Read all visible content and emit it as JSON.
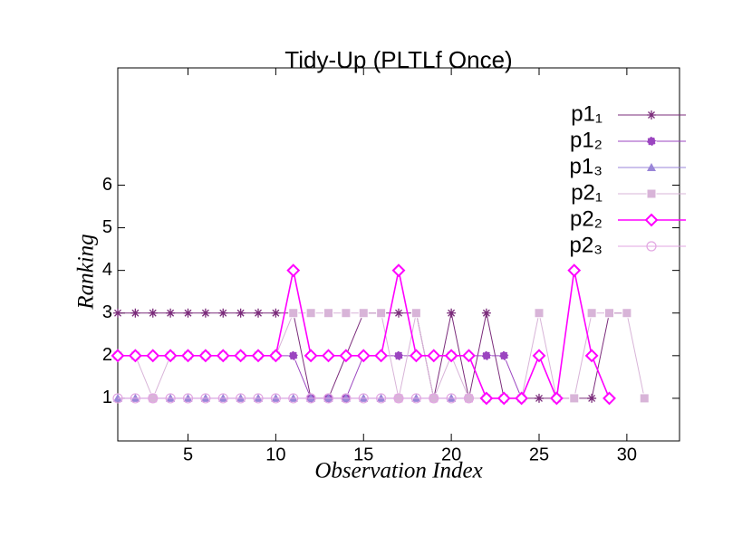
{
  "chart_data": {
    "type": "line",
    "title": "Tidy-Up (PLTLf Once)",
    "x_label": "Observation Index",
    "y_label": "Ranking",
    "x": [
      1,
      2,
      3,
      4,
      5,
      6,
      7,
      8,
      9,
      10,
      11,
      12,
      13,
      14,
      15,
      16,
      17,
      18,
      19,
      20,
      21,
      22,
      23,
      24,
      25,
      26,
      27,
      28,
      29,
      30,
      31
    ],
    "series": [
      {
        "name": "p1₁",
        "color": "#7b2c7b",
        "marker": "star",
        "values": [
          3,
          3,
          3,
          3,
          3,
          3,
          3,
          3,
          3,
          3,
          3,
          1,
          1,
          2,
          3,
          3,
          3,
          3,
          1,
          3,
          1,
          3,
          1,
          1,
          1,
          1,
          1,
          1,
          3,
          3,
          null
        ]
      },
      {
        "name": "p1₂",
        "color": "#9b45c0",
        "marker": "half-circle",
        "values": [
          2,
          2,
          2,
          2,
          2,
          2,
          2,
          2,
          2,
          2,
          2,
          1,
          1,
          1,
          2,
          2,
          2,
          2,
          2,
          2,
          2,
          2,
          2,
          1,
          2,
          1,
          null,
          null,
          null,
          null,
          null
        ]
      },
      {
        "name": "p1₃",
        "color": "#9a86d8",
        "marker": "triangle",
        "values": [
          1,
          1,
          1,
          1,
          1,
          1,
          1,
          1,
          1,
          1,
          1,
          1,
          1,
          1,
          1,
          1,
          1,
          1,
          1,
          1,
          1,
          null,
          null,
          null,
          null,
          null,
          null,
          null,
          null,
          null,
          null
        ]
      },
      {
        "name": "p2₁",
        "color": "#d8b4d8",
        "marker": "square",
        "values": [
          2,
          2,
          1,
          2,
          2,
          2,
          2,
          2,
          2,
          2,
          3,
          3,
          3,
          3,
          3,
          3,
          1,
          3,
          1,
          2,
          1,
          1,
          1,
          1,
          3,
          1,
          1,
          3,
          3,
          3,
          1
        ]
      },
      {
        "name": "p2₂",
        "color": "#ff00ff",
        "marker": "diamond",
        "values": [
          2,
          2,
          2,
          2,
          2,
          2,
          2,
          2,
          2,
          2,
          4,
          2,
          2,
          2,
          2,
          2,
          4,
          2,
          2,
          2,
          2,
          1,
          1,
          1,
          2,
          1,
          4,
          2,
          1,
          null,
          null
        ]
      },
      {
        "name": "p2₃",
        "color": "#e2a6e2",
        "marker": "circle-open",
        "values": [
          1,
          1,
          1,
          1,
          1,
          1,
          1,
          1,
          1,
          1,
          1,
          1,
          1,
          1,
          1,
          1,
          1,
          1,
          1,
          1,
          1,
          null,
          null,
          null,
          null,
          null,
          null,
          null,
          null,
          null,
          null
        ]
      }
    ],
    "xlim": [
      1,
      33
    ],
    "xticks": [
      5,
      10,
      15,
      20,
      25,
      30
    ],
    "ylim": [
      0,
      8.75
    ],
    "yticks": [
      1,
      2,
      3,
      4,
      5,
      6
    ],
    "legend": "top-right"
  }
}
